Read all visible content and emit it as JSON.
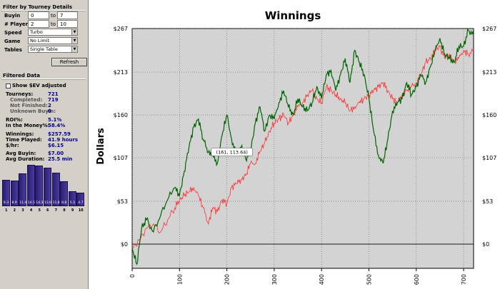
{
  "filter": {
    "title": "Filter by Tourney Details",
    "buyin_label": "Buyin",
    "buyin_from": "0",
    "buyin_to": "7",
    "players_label": "# Players",
    "players_from": "2",
    "players_to": "10",
    "to_label": "to",
    "speed_label": "Speed",
    "speed_value": "Turbo",
    "game_label": "Game",
    "game_value": "No Limit",
    "tables_label": "Tables",
    "tables_value": "Single Table",
    "refresh_label": "Refresh"
  },
  "filtered": {
    "title": "Filtered Data",
    "show_ev_label": "Show $EV adjusted",
    "tourneys_label": "Tourneys:",
    "tourneys_value": "721",
    "completed_label": "Completed:",
    "completed_value": "719",
    "not_finished_label": "Not Finished:",
    "not_finished_value": "2",
    "unknown_label": "Unknown Buyin:",
    "unknown_value": "0",
    "roi_label": "ROI%:",
    "roi_value": "5.1%",
    "itm_label": "In the Money%:",
    "itm_value": "58.4%",
    "winnings_label": "Winnings:",
    "winnings_value": "$257.59",
    "time_label": "Time Played:",
    "time_value": "41.9 hours",
    "rate_label": "$/hr:",
    "rate_value": "$6.15",
    "avg_buyin_label": "Avg Buyin:",
    "avg_buyin_value": "$7.00",
    "avg_duration_label": "Avg Duration:",
    "avg_duration_value": "25.5 min"
  },
  "histogram": {
    "labels": [
      "1",
      "2",
      "3",
      "4",
      "5",
      "6",
      "7",
      "8",
      "9",
      "10"
    ],
    "values": [
      "9.3",
      "8.9",
      "11.4",
      "14.5",
      "14.3",
      "13.6",
      "11.8",
      "8.8",
      "5.3",
      "4.7"
    ]
  },
  "chart_data": {
    "type": "line",
    "title": "Winnings",
    "ylabel": "Dollars",
    "xlim": [
      0,
      721
    ],
    "ylim": [
      -30,
      267
    ],
    "y_ticks": [
      "$0",
      "$53",
      "$107",
      "$160",
      "$213",
      "$267"
    ],
    "y_tick_values": [
      0,
      53,
      107,
      160,
      213,
      267
    ],
    "x_ticks": [
      "0",
      "100",
      "200",
      "300",
      "400",
      "500",
      "600",
      "700"
    ],
    "x_tick_values": [
      0,
      100,
      200,
      300,
      400,
      500,
      600,
      700
    ],
    "tooltip": "(161, 113.64)",
    "grid": true,
    "series": [
      {
        "color": "#006400",
        "x": [
          0,
          10,
          20,
          30,
          45,
          60,
          75,
          90,
          100,
          110,
          120,
          130,
          140,
          150,
          161,
          170,
          180,
          190,
          200,
          210,
          220,
          230,
          240,
          250,
          260,
          270,
          280,
          290,
          300,
          310,
          320,
          330,
          340,
          350,
          360,
          370,
          380,
          390,
          400,
          410,
          420,
          430,
          440,
          450,
          460,
          470,
          480,
          490,
          500,
          510,
          520,
          530,
          540,
          550,
          560,
          570,
          580,
          590,
          600,
          610,
          620,
          630,
          640,
          650,
          660,
          670,
          680,
          690,
          700,
          710,
          721
        ],
        "y": [
          -5,
          -25,
          20,
          30,
          15,
          35,
          55,
          70,
          60,
          90,
          120,
          145,
          155,
          130,
          114,
          110,
          100,
          135,
          160,
          130,
          110,
          120,
          105,
          115,
          150,
          170,
          140,
          160,
          155,
          175,
          190,
          170,
          160,
          180,
          170,
          165,
          175,
          195,
          180,
          210,
          215,
          190,
          210,
          230,
          200,
          240,
          225,
          210,
          180,
          140,
          110,
          100,
          130,
          165,
          175,
          180,
          200,
          185,
          195,
          210,
          200,
          220,
          240,
          255,
          235,
          230,
          225,
          245,
          245,
          265,
          258
        ]
      },
      {
        "color": "#ff3030",
        "x": [
          0,
          15,
          30,
          45,
          60,
          75,
          90,
          100,
          110,
          120,
          130,
          140,
          150,
          161,
          170,
          180,
          190,
          200,
          210,
          220,
          230,
          240,
          250,
          260,
          270,
          280,
          290,
          300,
          310,
          320,
          330,
          340,
          350,
          360,
          370,
          380,
          390,
          400,
          410,
          420,
          430,
          440,
          450,
          460,
          470,
          480,
          490,
          500,
          510,
          520,
          530,
          540,
          550,
          560,
          570,
          580,
          590,
          600,
          610,
          620,
          630,
          640,
          650,
          660,
          670,
          680,
          690,
          700,
          710,
          721
        ],
        "y": [
          -5,
          5,
          20,
          25,
          15,
          30,
          45,
          55,
          60,
          65,
          70,
          60,
          45,
          25,
          45,
          40,
          55,
          50,
          70,
          75,
          80,
          85,
          100,
          100,
          115,
          125,
          140,
          150,
          155,
          160,
          150,
          160,
          170,
          175,
          185,
          190,
          180,
          175,
          195,
          190,
          185,
          180,
          175,
          165,
          170,
          175,
          180,
          185,
          190,
          195,
          200,
          190,
          180,
          175,
          185,
          190,
          195,
          200,
          210,
          225,
          230,
          240,
          245,
          230,
          235,
          225,
          230,
          240,
          235,
          240
        ]
      }
    ]
  }
}
